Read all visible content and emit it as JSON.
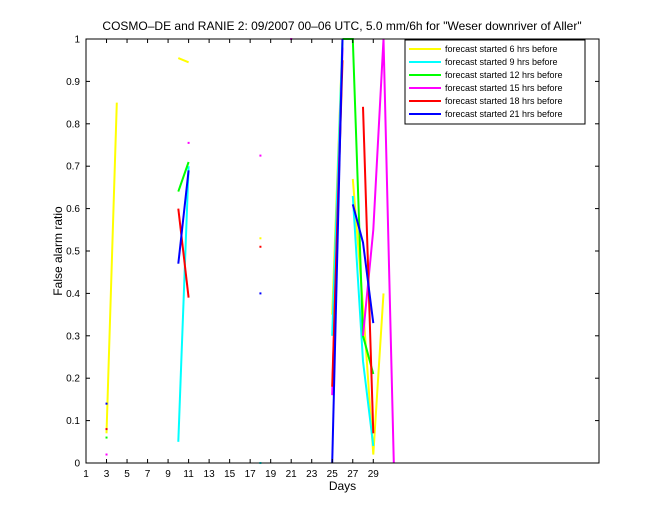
{
  "chart_data": {
    "type": "line",
    "title": "COSMO–DE and RANIE 2: 09/2007 00–06 UTC, 5.0 mm/6h for \"Weser downriver of Aller\"",
    "xlabel": "Days",
    "ylabel": "False alarm ratio",
    "xlim": [
      1,
      51
    ],
    "ylim": [
      0,
      1
    ],
    "xticks": [
      1,
      3,
      5,
      7,
      9,
      11,
      13,
      15,
      17,
      19,
      21,
      23,
      25,
      27,
      29
    ],
    "yticks": [
      0,
      0.1,
      0.2,
      0.3,
      0.4,
      0.5,
      0.6,
      0.7,
      0.8,
      0.9,
      1
    ],
    "ytick_labels": [
      "0",
      "0.1",
      "0.2",
      "0.3",
      "0.4",
      "0.5",
      "0.6",
      "0.7",
      "0.8",
      "0.9",
      "1"
    ],
    "legend_position": "top-right",
    "series": [
      {
        "name": "forecast started 6 hrs before",
        "color": "#ffff00",
        "segments": [
          [
            [
              3,
              0.07
            ],
            [
              4,
              0.85
            ]
          ],
          [
            [
              10,
              0.955
            ],
            [
              11,
              0.945
            ]
          ],
          [
            [
              18,
              0.53
            ]
          ],
          [
            [
              25,
              0.35
            ],
            [
              26,
              1.0
            ]
          ],
          [
            [
              27,
              0.67
            ],
            [
              28,
              0.37
            ],
            [
              29,
              0.02
            ],
            [
              30,
              0.4
            ]
          ]
        ]
      },
      {
        "name": "forecast started 9 hrs before",
        "color": "#00ffff",
        "segments": [
          [
            [
              3,
              0.08
            ]
          ],
          [
            [
              10,
              0.05
            ],
            [
              11,
              0.7
            ]
          ],
          [
            [
              18,
              0.0
            ]
          ],
          [
            [
              25,
              0.3
            ],
            [
              26,
              1.0
            ]
          ],
          [
            [
              27,
              0.63
            ],
            [
              28,
              0.24
            ],
            [
              29,
              0.04
            ]
          ]
        ]
      },
      {
        "name": "forecast started 12 hrs before",
        "color": "#00ff00",
        "segments": [
          [
            [
              3,
              0.06
            ]
          ],
          [
            [
              10,
              0.64
            ],
            [
              11,
              0.71
            ]
          ],
          [
            [
              26,
              1.0
            ],
            [
              27,
              1.0
            ],
            [
              28,
              0.3
            ],
            [
              29,
              0.21
            ]
          ]
        ]
      },
      {
        "name": "forecast started 15 hrs before",
        "color": "#ff00ff",
        "segments": [
          [
            [
              3,
              0.02
            ]
          ],
          [
            [
              11,
              0.755
            ]
          ],
          [
            [
              18,
              0.725
            ]
          ],
          [
            [
              21,
              1.0
            ]
          ],
          [
            [
              25,
              0.16
            ],
            [
              26,
              0.98
            ]
          ],
          [
            [
              28,
              0.3
            ],
            [
              29,
              0.55
            ],
            [
              30,
              1.0
            ],
            [
              31,
              0.0
            ]
          ]
        ]
      },
      {
        "name": "forecast started 18 hrs before",
        "color": "#ff0000",
        "segments": [
          [
            [
              3,
              0.08
            ]
          ],
          [
            [
              10,
              0.6
            ],
            [
              11,
              0.39
            ]
          ],
          [
            [
              18,
              0.51
            ]
          ],
          [
            [
              25,
              0.18
            ],
            [
              26,
              0.95
            ]
          ],
          [
            [
              28,
              0.84
            ],
            [
              29,
              0.07
            ]
          ]
        ]
      },
      {
        "name": "forecast started 21 hrs before",
        "color": "#0000ff",
        "segments": [
          [
            [
              3,
              0.14
            ]
          ],
          [
            [
              10,
              0.47
            ],
            [
              11,
              0.69
            ]
          ],
          [
            [
              18,
              0.4
            ]
          ],
          [
            [
              25,
              0.0
            ],
            [
              26,
              1.0
            ]
          ],
          [
            [
              27,
              0.61
            ],
            [
              28,
              0.52
            ],
            [
              29,
              0.33
            ]
          ]
        ]
      }
    ]
  }
}
